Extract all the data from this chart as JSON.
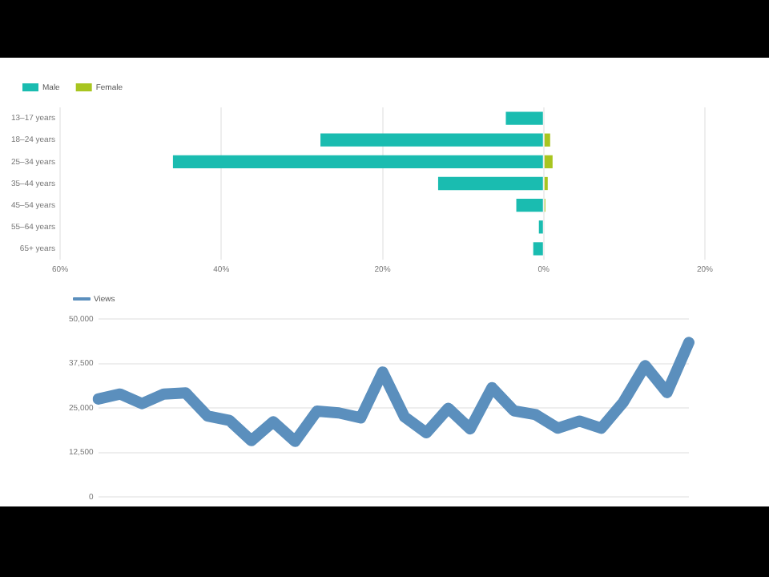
{
  "chart_data": [
    {
      "type": "bar",
      "orientation": "horizontal",
      "stacked": true,
      "categories": [
        "13–17 years",
        "18–24 years",
        "25–34 years",
        "35–44 years",
        "45–54 years",
        "55–64 years",
        "65+ years"
      ],
      "series": [
        {
          "name": "Male",
          "color": "#1abcb0",
          "values": [
            -4.7,
            -27.7,
            -46,
            -13.1,
            -3.4,
            -0.6,
            -1.3
          ]
        },
        {
          "name": "Female",
          "color": "#a8c520",
          "values": [
            null,
            0.8,
            1.1,
            0.5,
            0.2,
            null,
            null
          ]
        }
      ],
      "xlim": [
        -60,
        20
      ],
      "xticks": [
        {
          "value": -60,
          "label": "60%"
        },
        {
          "value": -40,
          "label": "40%"
        },
        {
          "value": -20,
          "label": "20%"
        },
        {
          "value": 0,
          "label": "0%"
        },
        {
          "value": 20,
          "label": "20%"
        }
      ],
      "grid": "x",
      "legend": "top left"
    },
    {
      "type": "line",
      "categories": [
        null,
        null,
        null,
        null,
        null,
        null,
        null,
        null,
        null,
        null,
        null,
        null,
        null,
        null,
        null,
        null,
        null,
        null,
        null,
        null,
        null,
        null,
        null,
        null,
        null,
        null,
        null,
        null
      ],
      "series": [
        {
          "name": "Views",
          "color": "#5b8fbd",
          "values": [
            27500,
            28900,
            26200,
            28900,
            29200,
            22700,
            21500,
            15800,
            21100,
            15600,
            24100,
            23600,
            22200,
            35100,
            22500,
            18000,
            24900,
            19100,
            30700,
            24200,
            23100,
            19300,
            21300,
            19300,
            26600,
            36900,
            29300,
            43400
          ]
        }
      ],
      "ylim": [
        0,
        50000
      ],
      "yticks": [
        {
          "value": 0,
          "label": "0"
        },
        {
          "value": 12500,
          "label": "12,500"
        },
        {
          "value": 25000,
          "label": "25,000"
        },
        {
          "value": 37500,
          "label": "37,500"
        },
        {
          "value": 50000,
          "label": "50,000"
        }
      ],
      "grid": "y",
      "legend": "top left",
      "tick_labels": "y",
      "marker": "none"
    }
  ]
}
